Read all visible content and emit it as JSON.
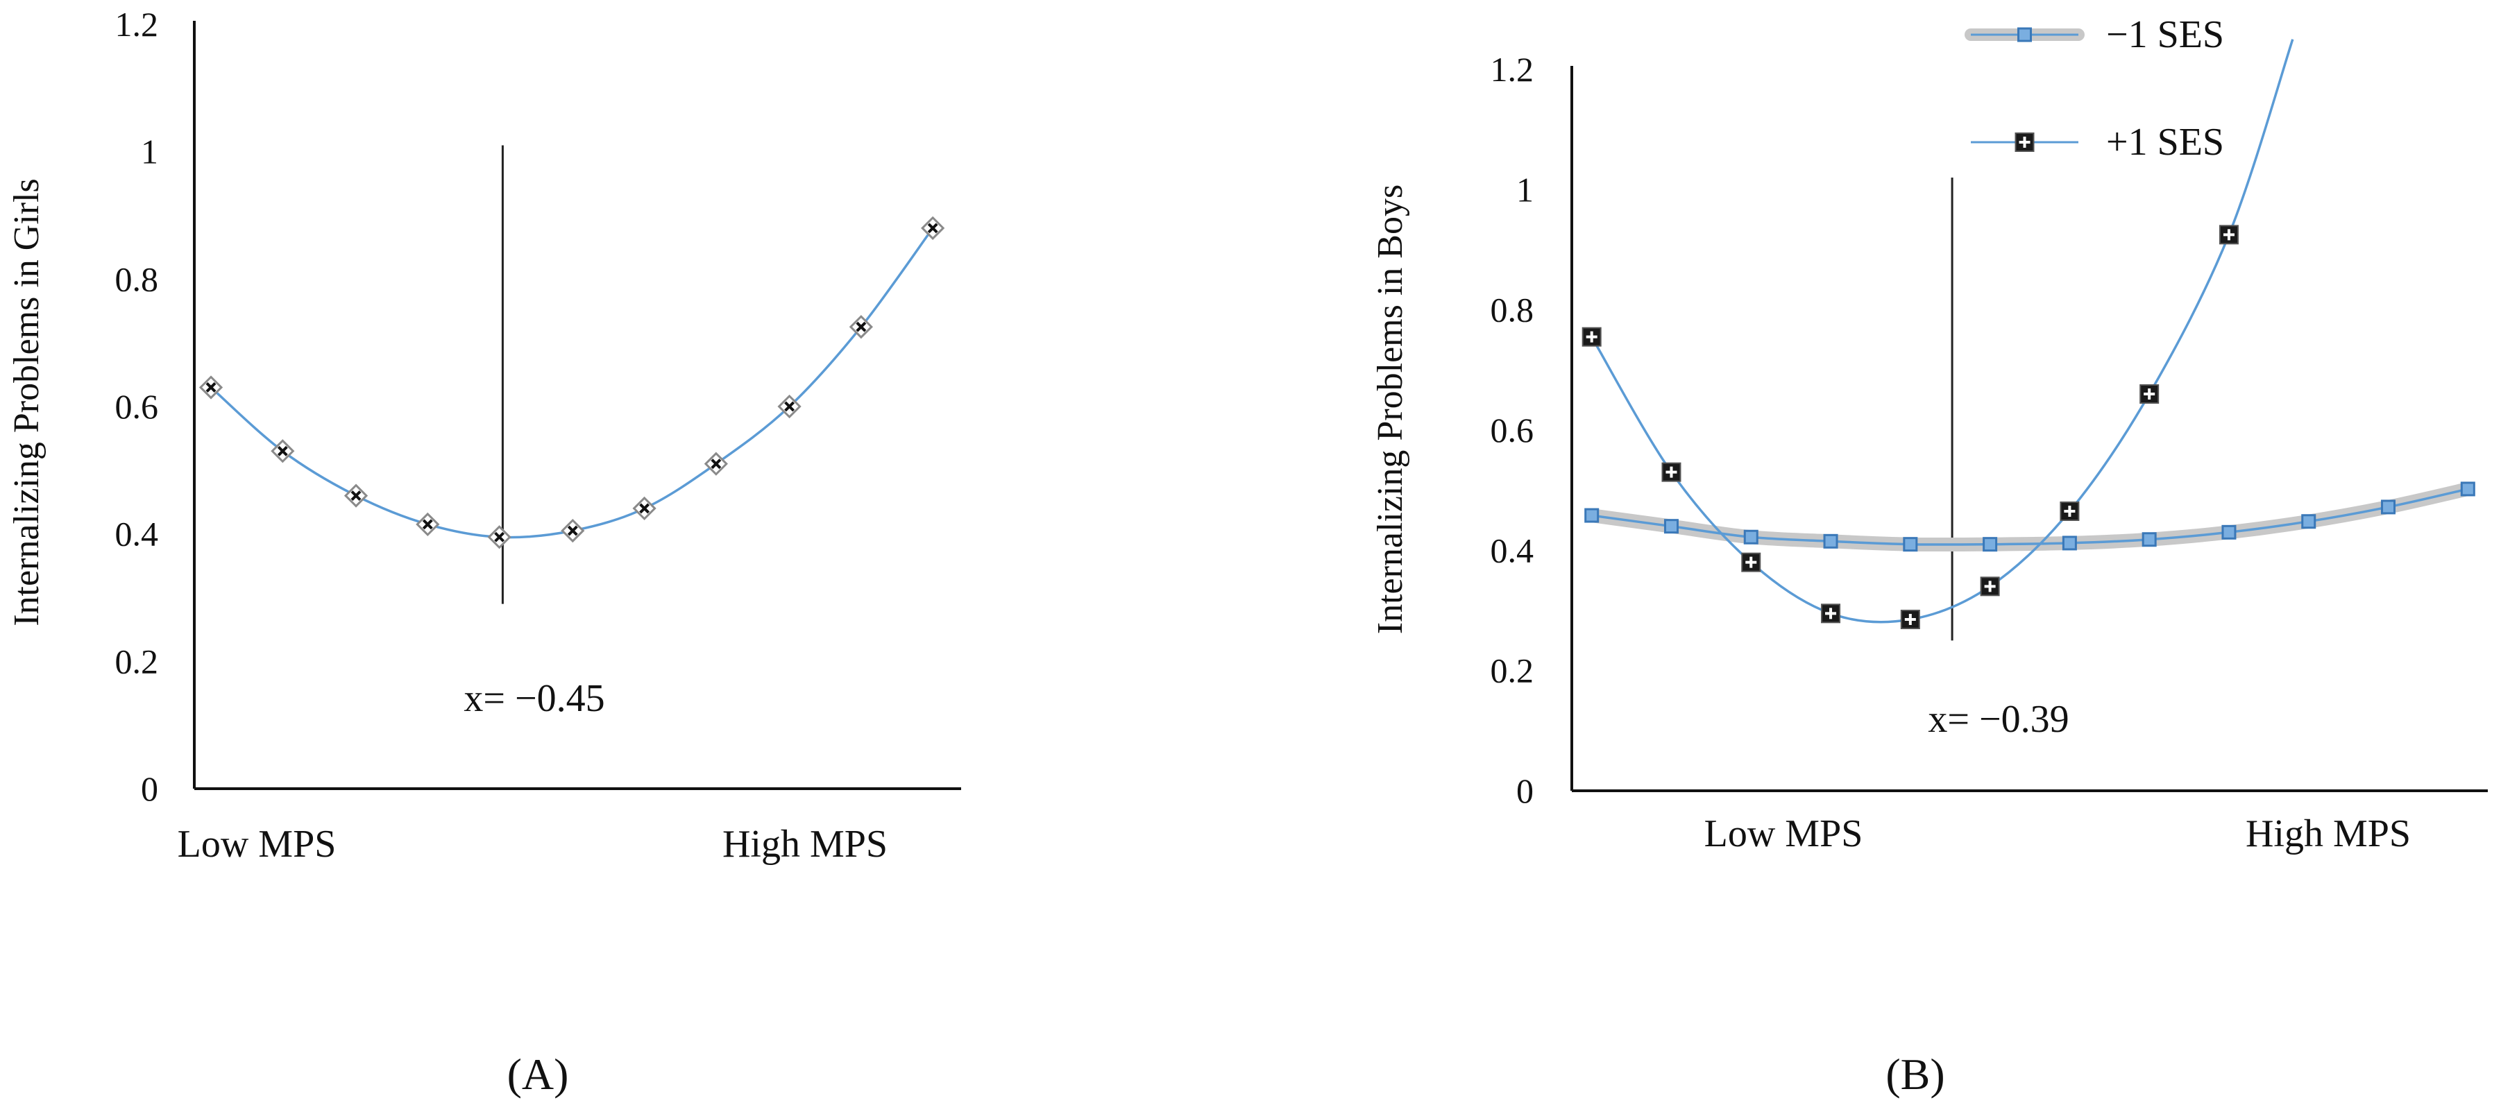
{
  "chart_data": [
    {
      "type": "line",
      "panel_label": "(A)",
      "ylabel": "Internalizing  Problems in Girls",
      "yticks": [
        "0",
        "0.2",
        "0.4",
        "0.6",
        "0.8",
        "1",
        "1.2"
      ],
      "ylim": [
        0,
        1.2
      ],
      "xlim": [
        -2.3,
        2.3
      ],
      "category_labels": [
        "Low MPS",
        "High MPS"
      ],
      "vline_x": -0.45,
      "vline_range": [
        0.29,
        1.01
      ],
      "annotation": "x= −0.45",
      "series": [
        {
          "name": "Girls",
          "marker": "diamond",
          "x": [
            -2.2,
            -1.77,
            -1.33,
            -0.9,
            -0.47,
            -0.03,
            0.4,
            0.83,
            1.27,
            1.7,
            2.13
          ],
          "values": [
            0.63,
            0.53,
            0.46,
            0.415,
            0.395,
            0.405,
            0.44,
            0.51,
            0.6,
            0.725,
            0.88
          ]
        }
      ]
    },
    {
      "type": "line",
      "panel_label": "(B)",
      "ylabel": "Internalizing Problems in Boys",
      "yticks": [
        "0",
        "0.2",
        "0.4",
        "0.6",
        "0.8",
        "1",
        "1.2"
      ],
      "ylim": [
        0,
        1.2
      ],
      "xlim": [
        -2.3,
        2.3
      ],
      "category_labels": [
        "Low MPS",
        "High MPS"
      ],
      "vline_x": -0.39,
      "vline_range": [
        0.25,
        1.02
      ],
      "annotation": "x= −0.39",
      "legend": [
        "−1 SES",
        "+1 SES"
      ],
      "series": [
        {
          "name": "−1 SES",
          "marker": "square",
          "x": [
            -2.2,
            -1.8,
            -1.4,
            -1.0,
            -0.6,
            -0.2,
            0.2,
            0.6,
            1.0,
            1.4,
            1.8,
            2.2
          ],
          "values": [
            0.458,
            0.44,
            0.422,
            0.415,
            0.41,
            0.41,
            0.412,
            0.418,
            0.43,
            0.448,
            0.472,
            0.502
          ]
        },
        {
          "name": "+1 SES",
          "marker": "square-plus",
          "x": [
            -2.2,
            -1.8,
            -1.4,
            -1.0,
            -0.6,
            -0.2,
            0.2,
            0.6
          ],
          "values": [
            0.755,
            0.53,
            0.38,
            0.295,
            0.285,
            0.34,
            0.465,
            0.66
          ],
          "extra_points": [
            {
              "x": 1.0,
              "y": 0.925
            }
          ]
        }
      ]
    }
  ],
  "colors": {
    "line_blue": "#5b9bd5",
    "band_gray": "#c8c8c8",
    "marker_dark": "#1a1a1a",
    "axis": "#111111"
  }
}
